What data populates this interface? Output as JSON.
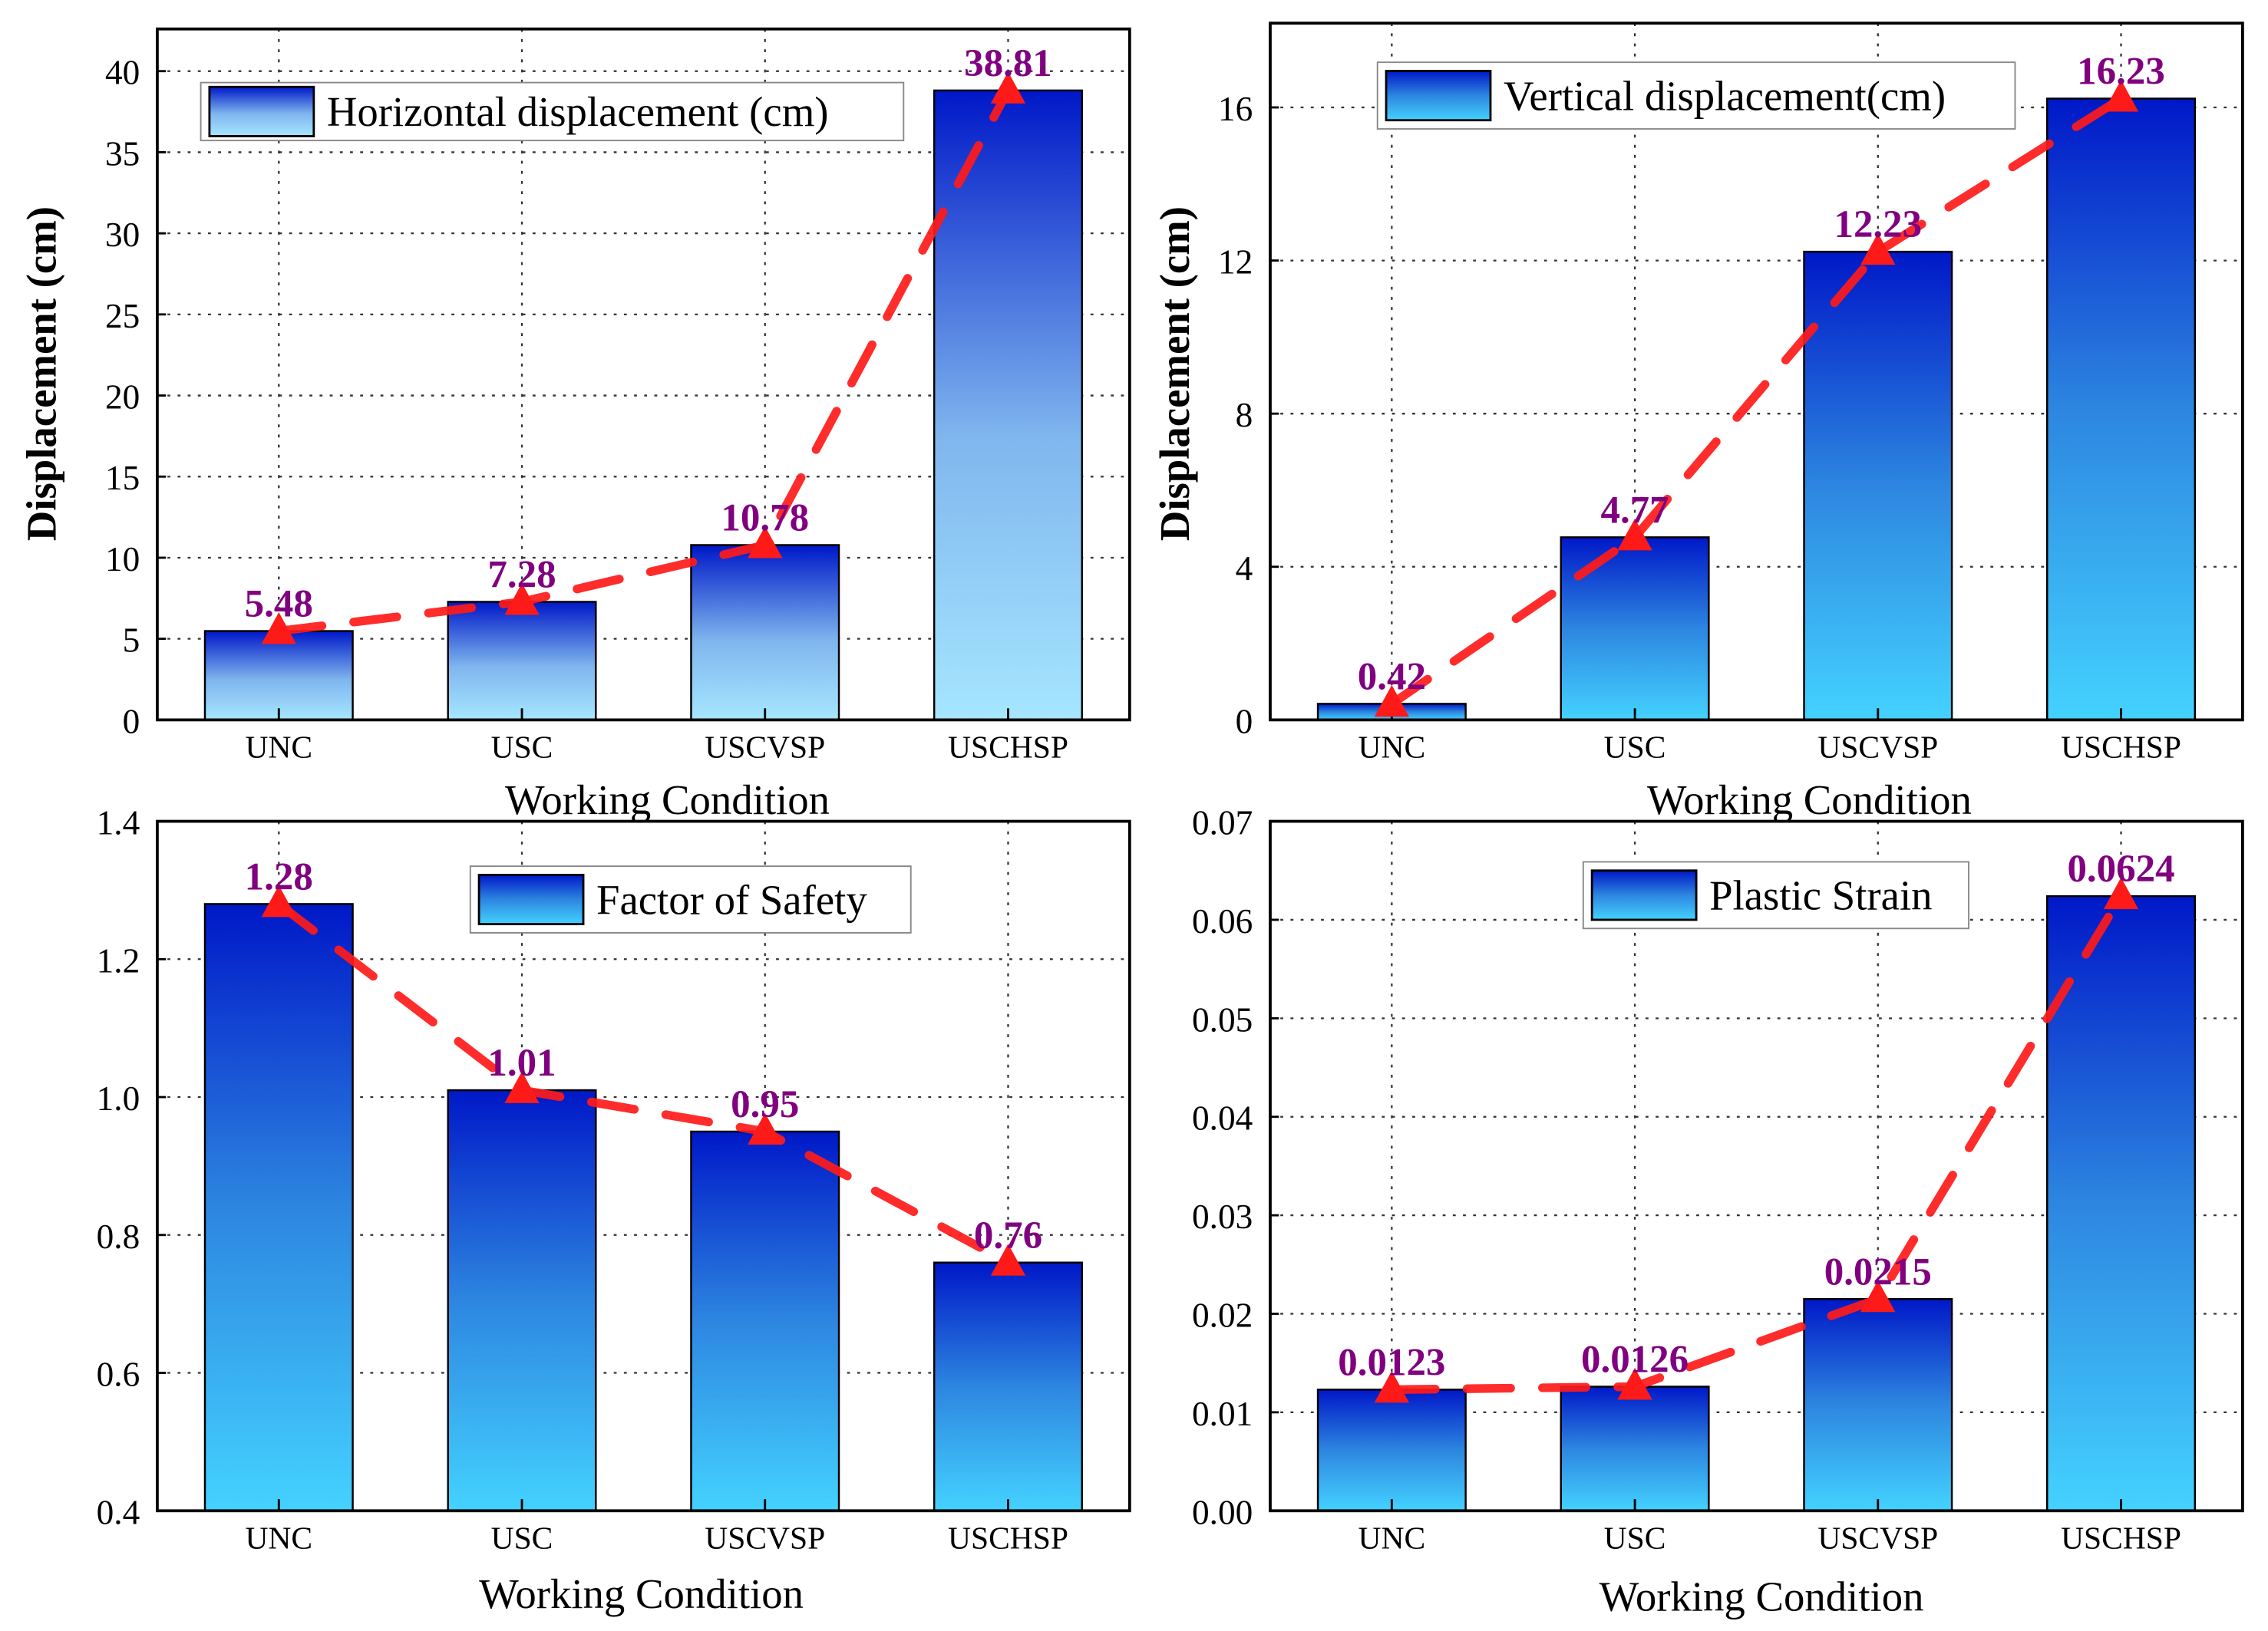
{
  "colors": {
    "bar_top": "#0018c8",
    "bar_bottom_light": "#a6e6ff",
    "bar_bottom_cyan": "#44d2ff",
    "trend": "#ff1a1a",
    "label": "#800080"
  },
  "chart_data": [
    {
      "type": "bar",
      "title": "",
      "legend": "Horizontal displacement (cm)",
      "legend_position": "top-left",
      "categories": [
        "UNC",
        "USC",
        "USCVSP",
        "USCHSP"
      ],
      "values": [
        5.48,
        7.28,
        10.78,
        38.81
      ],
      "labels": [
        "5.48",
        "7.28",
        "10.78",
        "38.81"
      ],
      "xlabel": "Working Condition",
      "ylabel": "Displacement (cm)",
      "ylim": [
        0,
        42.6
      ],
      "yticks": [
        0,
        5,
        10,
        15,
        20,
        25,
        30,
        35,
        40
      ],
      "ytick_labels": [
        "0",
        "5",
        "10",
        "15",
        "20",
        "25",
        "30",
        "35",
        "40"
      ],
      "grid": true,
      "trend_line": "dashed red with triangle markers",
      "gradient": "light"
    },
    {
      "type": "bar",
      "title": "",
      "legend": "Vertical displacement(cm)",
      "legend_position": "top",
      "categories": [
        "UNC",
        "USC",
        "USCVSP",
        "USCHSP"
      ],
      "values": [
        0.42,
        4.77,
        12.23,
        16.23
      ],
      "labels": [
        "0.42",
        "4.77",
        "12.23",
        "16.23"
      ],
      "xlabel": "Working Condition",
      "ylabel": "Displacement (cm)",
      "ylim": [
        0,
        18.2
      ],
      "yticks": [
        0,
        4,
        8,
        12,
        16
      ],
      "ytick_labels": [
        "0",
        "4",
        "8",
        "12",
        "16"
      ],
      "grid": true,
      "gradient": "cyan"
    },
    {
      "type": "bar",
      "title": "",
      "legend": "Factor of Safety",
      "legend_position": "top",
      "categories": [
        "UNC",
        "USC",
        "USCVSP",
        "USCHSP"
      ],
      "values": [
        1.28,
        1.01,
        0.95,
        0.76
      ],
      "labels": [
        "1.28",
        "1.01",
        "0.95",
        "0.76"
      ],
      "xlabel": "Working Condition",
      "ylabel": "",
      "ylim": [
        0.4,
        1.4
      ],
      "yticks": [
        0.4,
        0.6,
        0.8,
        1.0,
        1.2,
        1.4
      ],
      "ytick_labels": [
        "0.4",
        "0.6",
        "0.8",
        "1.0",
        "1.2",
        "1.4"
      ],
      "grid": true,
      "gradient": "cyan"
    },
    {
      "type": "bar",
      "title": "",
      "legend": "Plastic Strain",
      "legend_position": "top",
      "categories": [
        "UNC",
        "USC",
        "USCVSP",
        "USCHSP"
      ],
      "values": [
        0.0123,
        0.0126,
        0.0215,
        0.0624
      ],
      "labels": [
        "0.0123",
        "0.0126",
        "0.0215",
        "0.0624"
      ],
      "xlabel": "Working Condition",
      "ylabel": "",
      "ylim": [
        0,
        0.07
      ],
      "yticks": [
        0,
        0.01,
        0.02,
        0.03,
        0.04,
        0.05,
        0.06,
        0.07
      ],
      "ytick_labels": [
        "0.00",
        "0.01",
        "0.02",
        "0.03",
        "0.04",
        "0.05",
        "0.06",
        "0.07"
      ],
      "grid": true,
      "gradient": "cyan"
    }
  ]
}
